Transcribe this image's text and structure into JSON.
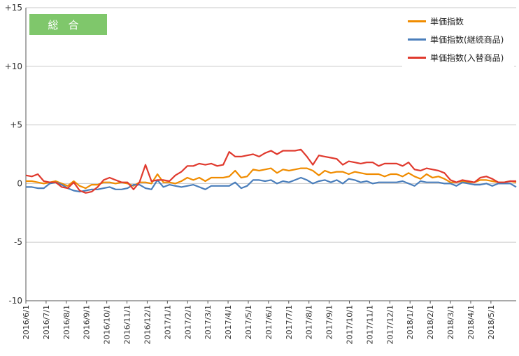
{
  "chart_data": {
    "type": "line",
    "title": "総合",
    "ylim": [
      -10,
      15
    ],
    "yticks": [
      "+15",
      "+10",
      "+5",
      "0",
      "-5",
      "-10"
    ],
    "ytick_values": [
      15,
      10,
      5,
      0,
      -5,
      -10
    ],
    "grid": "horizontal",
    "legend_position": "top-right",
    "x_tick_labels": [
      "2016/6/1",
      "2016/7/1",
      "2016/8/1",
      "2016/9/1",
      "2016/10/1",
      "2016/11/1",
      "2016/12/1",
      "2017/1/1",
      "2017/2/1",
      "2017/3/1",
      "2017/4/1",
      "2017/5/1",
      "2017/6/1",
      "2017/7/1",
      "2017/8/1",
      "2017/9/1",
      "2017/10/1",
      "2017/11/1",
      "2017/12/1",
      "2018/1/1",
      "2018/2/1",
      "2018/3/1",
      "2018/4/1",
      "2018/5/1"
    ],
    "series": [
      {
        "name": "単価指数",
        "color": "#f08c00",
        "values": [
          0.2,
          0.2,
          0.1,
          0.0,
          0.1,
          0.2,
          0.0,
          -0.2,
          0.2,
          -0.2,
          -0.4,
          -0.1,
          -0.1,
          0.1,
          0.1,
          0.0,
          0.1,
          0.0,
          -0.2,
          0.1,
          0.1,
          0.0,
          0.8,
          0.1,
          0.1,
          0.0,
          0.2,
          0.5,
          0.3,
          0.5,
          0.2,
          0.5,
          0.5,
          0.5,
          0.6,
          1.1,
          0.5,
          0.6,
          1.2,
          1.1,
          1.2,
          1.3,
          0.9,
          1.2,
          1.1,
          1.2,
          1.3,
          1.3,
          1.1,
          0.7,
          1.1,
          0.9,
          1.0,
          1.0,
          0.8,
          1.0,
          0.9,
          0.8,
          0.8,
          0.8,
          0.6,
          0.8,
          0.8,
          0.6,
          0.9,
          0.6,
          0.4,
          0.8,
          0.5,
          0.6,
          0.4,
          0.1,
          0.1,
          0.2,
          0.1,
          0.1,
          0.3,
          0.3,
          0.2,
          0.1,
          0.1,
          0.2,
          0.1
        ]
      },
      {
        "name": "単価指数(継続商品)",
        "color": "#4a7ebb",
        "values": [
          -0.3,
          -0.3,
          -0.4,
          -0.4,
          0.0,
          0.1,
          -0.1,
          -0.4,
          -0.6,
          -0.7,
          -0.6,
          -0.5,
          -0.5,
          -0.4,
          -0.3,
          -0.5,
          -0.5,
          -0.4,
          -0.1,
          -0.1,
          -0.4,
          -0.5,
          0.3,
          -0.3,
          -0.1,
          -0.2,
          -0.3,
          -0.2,
          -0.1,
          -0.3,
          -0.5,
          -0.2,
          -0.2,
          -0.2,
          -0.2,
          0.1,
          -0.4,
          -0.2,
          0.3,
          0.3,
          0.2,
          0.3,
          0.0,
          0.2,
          0.1,
          0.3,
          0.5,
          0.3,
          0.0,
          0.2,
          0.3,
          0.1,
          0.3,
          0.0,
          0.4,
          0.3,
          0.1,
          0.2,
          0.0,
          0.1,
          0.1,
          0.1,
          0.1,
          0.2,
          0.0,
          -0.2,
          0.2,
          0.1,
          0.1,
          0.1,
          0.0,
          0.0,
          -0.2,
          0.1,
          0.0,
          -0.1,
          -0.1,
          0.0,
          -0.2,
          0.0,
          0.0,
          0.0,
          -0.3
        ]
      },
      {
        "name": "単価指数(入替商品)",
        "color": "#e03a2e",
        "values": [
          0.7,
          0.6,
          0.8,
          0.2,
          0.1,
          0.1,
          -0.3,
          -0.4,
          0.1,
          -0.6,
          -0.8,
          -0.7,
          -0.3,
          0.3,
          0.5,
          0.3,
          0.1,
          0.1,
          -0.5,
          0.1,
          1.6,
          0.2,
          0.3,
          0.3,
          0.2,
          0.7,
          1.0,
          1.5,
          1.5,
          1.7,
          1.6,
          1.7,
          1.5,
          1.6,
          2.7,
          2.3,
          2.3,
          2.4,
          2.5,
          2.3,
          2.6,
          2.8,
          2.5,
          2.8,
          2.8,
          2.8,
          2.9,
          2.3,
          1.6,
          2.4,
          2.3,
          2.2,
          2.1,
          1.6,
          1.9,
          1.8,
          1.7,
          1.8,
          1.8,
          1.5,
          1.7,
          1.7,
          1.7,
          1.5,
          1.8,
          1.2,
          1.1,
          1.3,
          1.2,
          1.1,
          0.9,
          0.3,
          0.1,
          0.3,
          0.2,
          0.1,
          0.5,
          0.6,
          0.4,
          0.1,
          0.1,
          0.2,
          0.2
        ]
      }
    ]
  },
  "legend_items": [
    "単価指数",
    "単価指数(継続商品)",
    "単価指数(入替商品)"
  ]
}
